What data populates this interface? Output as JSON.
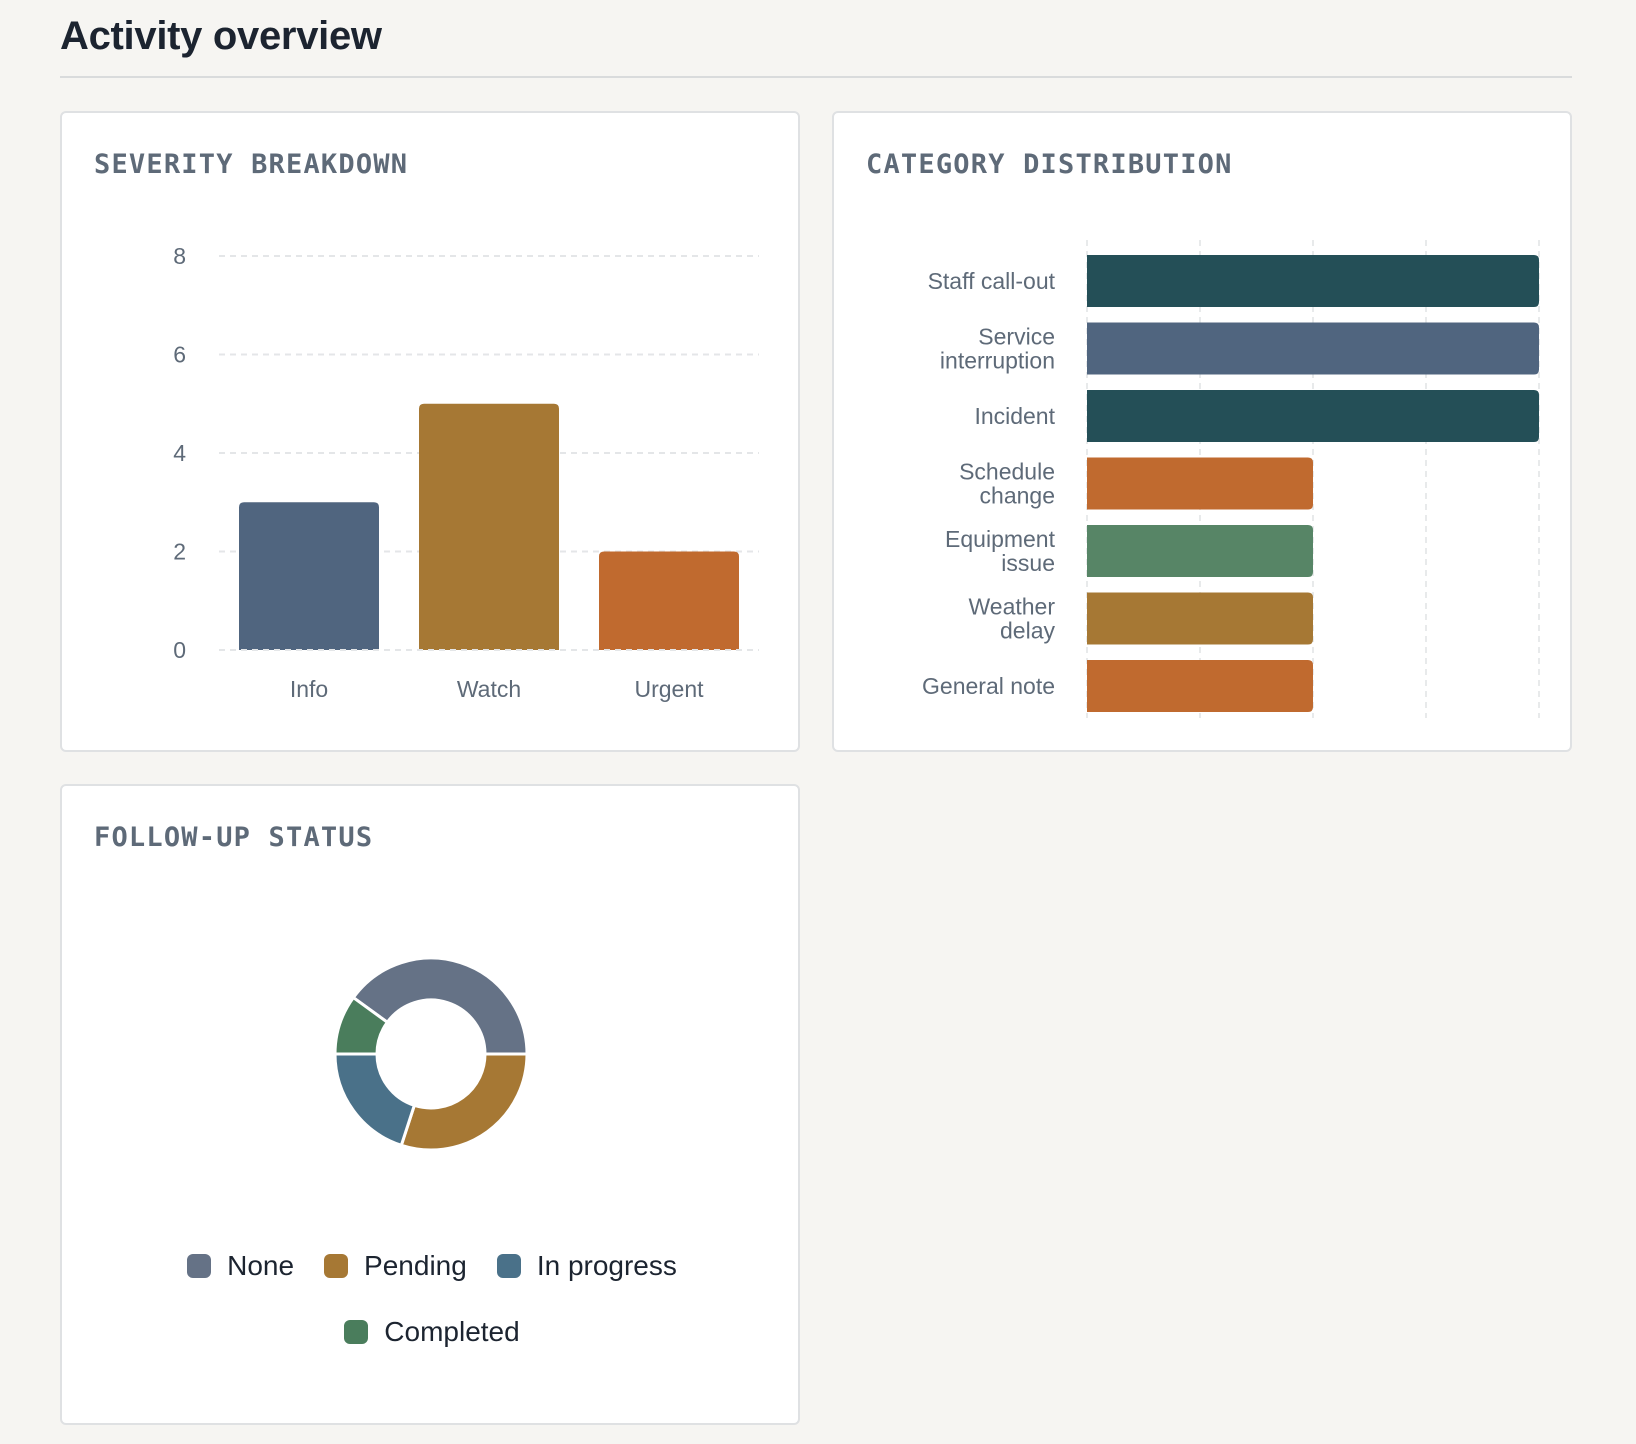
{
  "page": {
    "title": "Activity overview"
  },
  "chart_data": [
    {
      "id": "severity",
      "type": "bar",
      "title": "SEVERITY BREAKDOWN",
      "categories": [
        "Info",
        "Watch",
        "Urgent"
      ],
      "values": [
        3,
        5,
        2
      ],
      "colors": [
        "#50657f",
        "#a67834",
        "#c06a2f"
      ],
      "ylim": [
        0,
        8
      ],
      "yticks": [
        0,
        2,
        4,
        6,
        8
      ],
      "grid": true
    },
    {
      "id": "category",
      "type": "bar",
      "orientation": "horizontal",
      "title": "CATEGORY DISTRIBUTION",
      "categories": [
        [
          "Staff call-out"
        ],
        [
          "Service",
          "interruption"
        ],
        [
          "Incident"
        ],
        [
          "Schedule",
          "change"
        ],
        [
          "Equipment",
          "issue"
        ],
        [
          "Weather",
          "delay"
        ],
        [
          "General note"
        ]
      ],
      "values": [
        2,
        2,
        2,
        1,
        1,
        1,
        1
      ],
      "colors": [
        "#244f57",
        "#50657f",
        "#244f57",
        "#c06a2f",
        "#578566",
        "#a67834",
        "#c06a2f"
      ],
      "xlim": [
        0,
        2
      ],
      "grid": true
    },
    {
      "id": "followup",
      "type": "pie",
      "donut": true,
      "title": "FOLLOW-UP STATUS",
      "labels": [
        "None",
        "Pending",
        "In progress",
        "Completed"
      ],
      "values": [
        4,
        3,
        2,
        1
      ],
      "colors": [
        "#657286",
        "#a67834",
        "#4a7189",
        "#4a7d5c"
      ],
      "legend": "bottom"
    }
  ]
}
